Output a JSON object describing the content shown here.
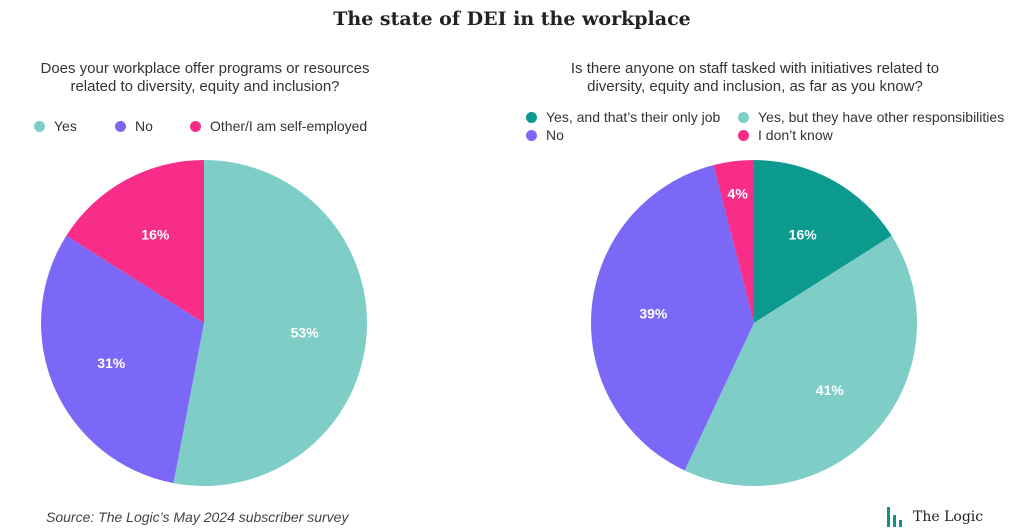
{
  "title": "The state of DEI in the workplace",
  "source": "Source: The Logic’s May 2024 subscriber survey",
  "brand": "The Logic",
  "colors": {
    "teal_dark": "#0b9a8d",
    "teal_light": "#7ecdc6",
    "purple": "#7b68f7",
    "pink": "#f72d87"
  },
  "chart_data": [
    {
      "type": "pie",
      "question_lines": [
        "Does your workplace offer programs or resources",
        "related to diversity, equity and inclusion?"
      ],
      "slices": [
        {
          "label": "Yes",
          "value": 53,
          "text": "53%",
          "color": "#7ecdc6"
        },
        {
          "label": "No",
          "value": 31,
          "text": "31%",
          "color": "#7b68f7"
        },
        {
          "label": "Other/I am self-employed",
          "value": 16,
          "text": "16%",
          "color": "#f72d87"
        }
      ]
    },
    {
      "type": "pie",
      "question_lines": [
        "Is there anyone on staff tasked with initiatives related to",
        "diversity, equity and inclusion, as far as you know?"
      ],
      "slices": [
        {
          "label": "Yes, and that’s their only job",
          "value": 16,
          "text": "16%",
          "color": "#0b9a8d"
        },
        {
          "label": "Yes, but they have other responsibilities",
          "value": 41,
          "text": "41%",
          "color": "#7ecdc6"
        },
        {
          "label": "No",
          "value": 39,
          "text": "39%",
          "color": "#7b68f7"
        },
        {
          "label": "I don’t know",
          "value": 4,
          "text": "4%",
          "color": "#f72d87"
        }
      ]
    }
  ]
}
